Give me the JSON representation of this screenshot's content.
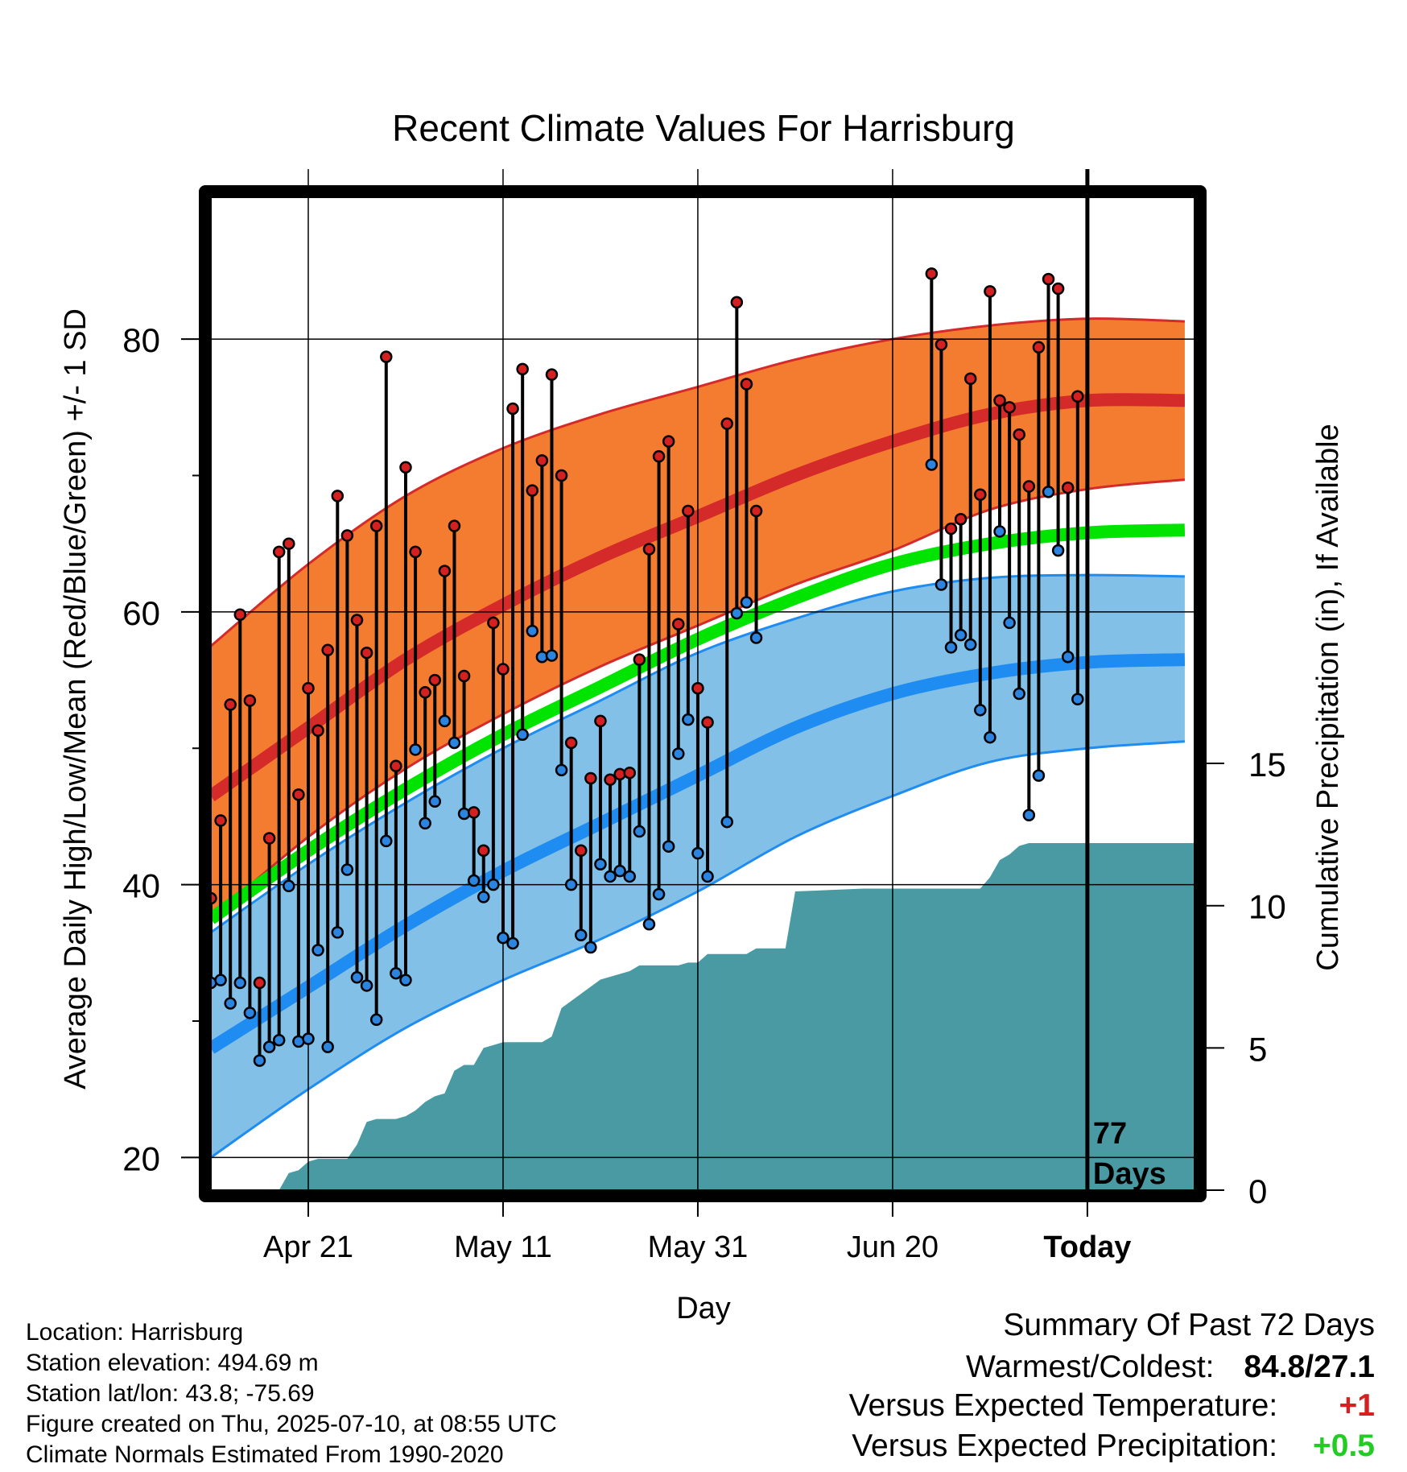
{
  "chart_data": {
    "type": "line",
    "title": "Recent Climate Values For Harrisburg",
    "xlabel": "Day",
    "ylabel": "Average Daily High/Low/Mean (Red/Blue/Green) +/- 1 SD",
    "ylabel_right": "Cumulative Precipitation (in), If Available",
    "x_tick_labels": [
      "Apr 21",
      "May 11",
      "May 31",
      "Jun 20",
      "Today"
    ],
    "y_ticks": [
      "20",
      "40",
      "60",
      "80"
    ],
    "y2_ticks": [
      "0",
      "5",
      "10",
      "15"
    ],
    "ylim": [
      17.6,
      90.4
    ],
    "y2lim": [
      0,
      34.9
    ],
    "xlim": [
      0,
      101
    ],
    "today_index": 90,
    "grid": true,
    "today_annotation_line1": "77",
    "today_annotation_line2": "Days",
    "colors": {
      "high_band": "#f47c30",
      "high_line": "#d42a2a",
      "low_band": "#82c0e8",
      "low_line": "#1e8cf0",
      "mean_line": "#00e400",
      "precip": "#4a9aa4",
      "high_marker": "#d42020",
      "low_marker": "#2a84e0"
    },
    "normals": {
      "x": [
        0,
        10,
        20,
        30,
        40,
        50,
        60,
        70,
        80,
        90,
        100
      ],
      "high_mean": [
        46.5,
        51.5,
        56.5,
        60.5,
        64,
        67,
        70,
        72.5,
        74.5,
        75.5,
        75.5
      ],
      "high_plus_sd": [
        57.5,
        63.5,
        68.5,
        72,
        74.5,
        76.5,
        78.5,
        80,
        81,
        81.5,
        81.3
      ],
      "high_minus_sd": [
        37.5,
        43.5,
        48.5,
        52.5,
        56,
        59,
        62,
        64.5,
        67.5,
        69,
        69.7
      ],
      "low_mean": [
        28,
        32.5,
        37,
        41,
        44.5,
        48,
        51.5,
        54,
        55.5,
        56.3,
        56.5
      ],
      "low_plus_sd": [
        36.5,
        41.5,
        46,
        50,
        53.5,
        57,
        59.5,
        61.5,
        62.5,
        62.7,
        62.6
      ],
      "low_minus_sd": [
        20,
        25,
        29.5,
        33,
        36,
        39.5,
        43.5,
        46.5,
        49,
        50,
        50.5
      ],
      "mean": [
        37.5,
        42.5,
        47,
        51,
        54.5,
        58,
        61,
        63.5,
        65,
        65.8,
        66
      ]
    },
    "daily": [
      {
        "x": 0,
        "high": 39,
        "low": 32.8
      },
      {
        "x": 1,
        "high": 44.7,
        "low": 33
      },
      {
        "x": 2,
        "high": 53.2,
        "low": 31.3
      },
      {
        "x": 3,
        "high": 59.8,
        "low": 32.8
      },
      {
        "x": 4,
        "high": 53.5,
        "low": 30.6
      },
      {
        "x": 5,
        "high": 32.8,
        "low": 27.1
      },
      {
        "x": 6,
        "high": 43.4,
        "low": 28.1
      },
      {
        "x": 7,
        "high": 64.4,
        "low": 28.6
      },
      {
        "x": 8,
        "high": 65,
        "low": 39.9
      },
      {
        "x": 9,
        "high": 46.6,
        "low": 28.5
      },
      {
        "x": 10,
        "high": 54.4,
        "low": 28.7
      },
      {
        "x": 11,
        "high": 51.3,
        "low": 35.2
      },
      {
        "x": 12,
        "high": 57.2,
        "low": 28.1
      },
      {
        "x": 13,
        "high": 68.5,
        "low": 36.5
      },
      {
        "x": 14,
        "high": 65.6,
        "low": 41.1
      },
      {
        "x": 15,
        "high": 59.4,
        "low": 33.2
      },
      {
        "x": 16,
        "high": 57,
        "low": 32.6
      },
      {
        "x": 17,
        "high": 66.3,
        "low": 30.1
      },
      {
        "x": 18,
        "high": 78.7,
        "low": 43.2
      },
      {
        "x": 19,
        "high": 48.7,
        "low": 33.5
      },
      {
        "x": 20,
        "high": 70.6,
        "low": 33
      },
      {
        "x": 21,
        "high": 64.4,
        "low": 49.9
      },
      {
        "x": 22,
        "high": 54.1,
        "low": 44.5
      },
      {
        "x": 23,
        "high": 55,
        "low": 46.1
      },
      {
        "x": 24,
        "high": 63,
        "low": 52
      },
      {
        "x": 25,
        "high": 66.3,
        "low": 50.4
      },
      {
        "x": 26,
        "high": 55.3,
        "low": 45.2
      },
      {
        "x": 27,
        "high": 45.3,
        "low": 40.3
      },
      {
        "x": 28,
        "high": 42.5,
        "low": 39.1
      },
      {
        "x": 29,
        "high": 59.2,
        "low": 40
      },
      {
        "x": 30,
        "high": 55.8,
        "low": 36.1
      },
      {
        "x": 31,
        "high": 74.9,
        "low": 35.7
      },
      {
        "x": 32,
        "high": 77.8,
        "low": 51
      },
      {
        "x": 33,
        "high": 68.9,
        "low": 58.6
      },
      {
        "x": 34,
        "high": 71.1,
        "low": 56.7
      },
      {
        "x": 35,
        "high": 77.4,
        "low": 56.8
      },
      {
        "x": 36,
        "high": 70,
        "low": 48.4
      },
      {
        "x": 37,
        "high": 50.4,
        "low": 40
      },
      {
        "x": 38,
        "high": 42.5,
        "low": 36.3
      },
      {
        "x": 39,
        "high": 47.8,
        "low": 35.4
      },
      {
        "x": 40,
        "high": 52,
        "low": 41.5
      },
      {
        "x": 41,
        "high": 47.7,
        "low": 40.6
      },
      {
        "x": 42,
        "high": 48.1,
        "low": 41
      },
      {
        "x": 43,
        "high": 48.2,
        "low": 40.6
      },
      {
        "x": 44,
        "high": 56.5,
        "low": 43.9
      },
      {
        "x": 45,
        "high": 64.6,
        "low": 37.1
      },
      {
        "x": 46,
        "high": 71.4,
        "low": 39.3
      },
      {
        "x": 47,
        "high": 72.5,
        "low": 42.8
      },
      {
        "x": 48,
        "high": 59.1,
        "low": 49.6
      },
      {
        "x": 49,
        "high": 67.4,
        "low": 52.1
      },
      {
        "x": 50,
        "high": 54.4,
        "low": 42.3
      },
      {
        "x": 51,
        "high": 51.9,
        "low": 40.6
      },
      {
        "x": 53,
        "high": 73.8,
        "low": 44.6
      },
      {
        "x": 54,
        "high": 82.7,
        "low": 59.9
      },
      {
        "x": 55,
        "high": 76.7,
        "low": 60.7
      },
      {
        "x": 56,
        "high": 67.4,
        "low": 58.1
      },
      {
        "x": 74,
        "high": 84.8,
        "low": 70.8
      },
      {
        "x": 75,
        "high": 79.6,
        "low": 62
      },
      {
        "x": 76,
        "high": 66.1,
        "low": 57.4
      },
      {
        "x": 77,
        "high": 66.8,
        "low": 58.3
      },
      {
        "x": 78,
        "high": 77.1,
        "low": 57.6
      },
      {
        "x": 79,
        "high": 68.6,
        "low": 52.8
      },
      {
        "x": 80,
        "high": 83.5,
        "low": 50.8
      },
      {
        "x": 81,
        "high": 75.5,
        "low": 65.9
      },
      {
        "x": 82,
        "high": 75,
        "low": 59.2
      },
      {
        "x": 83,
        "high": 73,
        "low": 54
      },
      {
        "x": 84,
        "high": 69.2,
        "low": 45.1
      },
      {
        "x": 85,
        "high": 79.4,
        "low": 48
      },
      {
        "x": 86,
        "high": 84.4,
        "low": 68.8
      },
      {
        "x": 87,
        "high": 83.7,
        "low": 64.5
      },
      {
        "x": 88,
        "high": 69.1,
        "low": 56.7
      },
      {
        "x": 89,
        "high": 75.8,
        "low": 53.6
      }
    ],
    "precipitation": {
      "x": [
        0,
        7,
        8,
        9,
        10,
        11,
        14,
        15,
        16,
        17,
        19,
        20,
        21,
        22,
        23,
        24,
        25,
        26,
        27,
        28,
        29,
        30,
        34,
        35,
        36,
        40,
        41,
        42,
        43,
        44,
        48,
        49,
        50,
        51,
        55,
        56,
        59,
        60,
        67,
        79,
        80,
        81,
        82,
        83,
        84,
        90,
        101
      ],
      "inches": [
        0,
        0,
        0.6,
        0.7,
        1,
        1.1,
        1.1,
        1.6,
        2.4,
        2.5,
        2.5,
        2.6,
        2.8,
        3.1,
        3.3,
        3.4,
        4.2,
        4.4,
        4.4,
        5,
        5.1,
        5.2,
        5.2,
        5.4,
        6.4,
        7.4,
        7.5,
        7.6,
        7.7,
        7.9,
        7.9,
        8,
        8,
        8.3,
        8.3,
        8.5,
        8.5,
        10.5,
        10.6,
        10.6,
        11,
        11.6,
        11.8,
        12.1,
        12.2,
        12.2,
        12.2
      ]
    }
  },
  "info": {
    "location": "Location: Harrisburg",
    "elevation": "Station elevation: 494.69 m",
    "latlon": "Station lat/lon: 43.8; -75.69",
    "created": "Figure created on Thu, 2025-07-10, at 08:55 UTC",
    "normals": "Climate Normals Estimated From 1990-2020"
  },
  "summary": {
    "title": "Summary Of Past 72 Days",
    "warm_cold_label": "Warmest/Coldest:",
    "warm_cold_value": "84.8/27.1",
    "temp_label": "Versus Expected Temperature:",
    "temp_value": "+1",
    "temp_color": "#d42020",
    "precip_label": "Versus Expected Precipitation:",
    "precip_value": "+0.5",
    "precip_color": "#22cc22"
  }
}
